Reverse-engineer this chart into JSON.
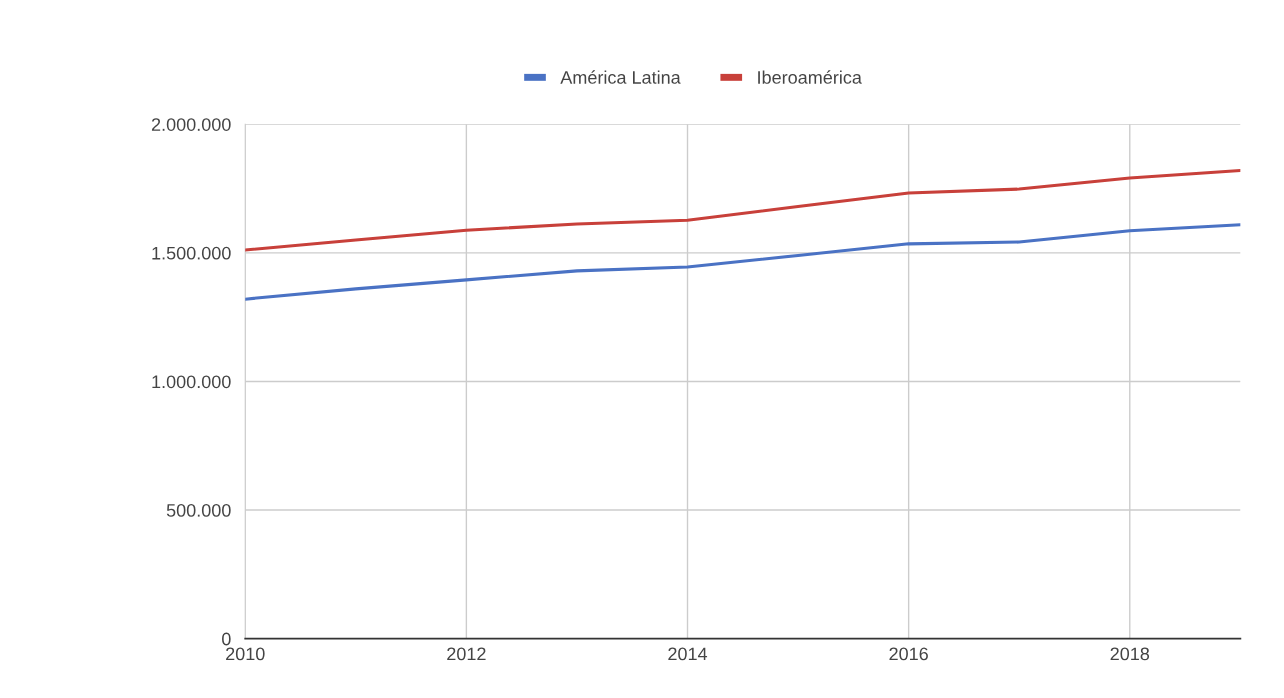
{
  "chart_data": {
    "type": "line",
    "x": [
      2010,
      2011,
      2012,
      2013,
      2014,
      2015,
      2016,
      2017,
      2018,
      2019
    ],
    "series": [
      {
        "name": "América Latina",
        "color": "#4a72c4",
        "values": [
          1320000,
          1360000,
          1395000,
          1430000,
          1445000,
          1490000,
          1535000,
          1542000,
          1586000,
          1609000
        ]
      },
      {
        "name": "Iberoamérica",
        "color": "#c8403a",
        "values": [
          1511000,
          1550000,
          1588000,
          1612000,
          1627000,
          1680000,
          1733000,
          1748000,
          1791000,
          1820000
        ]
      }
    ],
    "xlim": [
      2010,
      2019
    ],
    "xticks": [
      2010,
      2012,
      2014,
      2016,
      2018
    ],
    "ylim": [
      0,
      2000000
    ],
    "yticks": [
      0,
      {
        "value": 500000,
        "label": "500.000"
      },
      {
        "value": 1000000,
        "label": "1.000.000"
      },
      {
        "value": 1500000,
        "label": "1.500.000"
      },
      {
        "value": 2000000,
        "label": "2.000.000"
      }
    ],
    "grid": true,
    "legend": "top",
    "marker": "none",
    "line_style": "solid"
  }
}
